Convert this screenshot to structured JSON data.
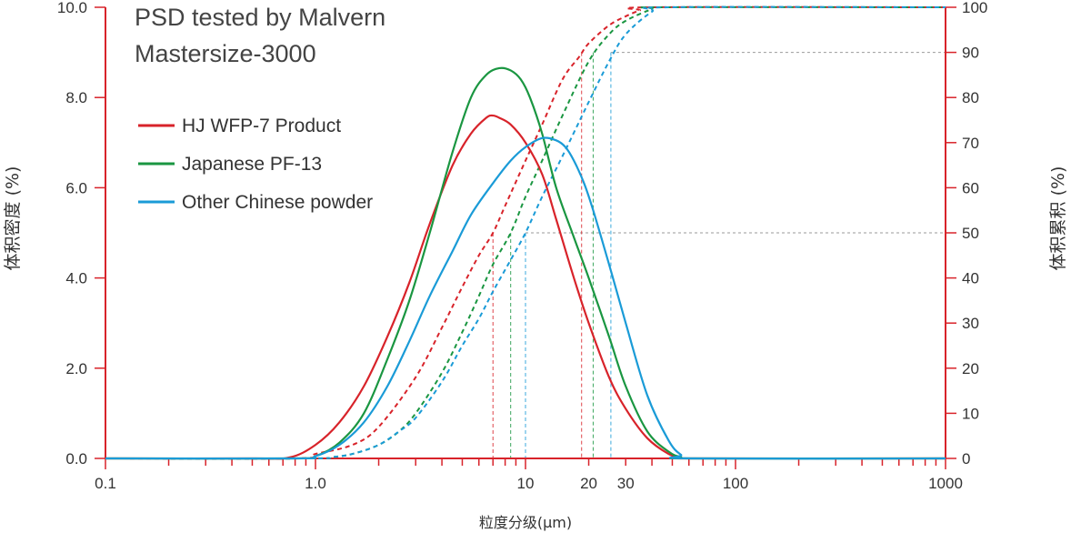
{
  "chart_data": {
    "type": "line",
    "title": [
      "PSD tested by Malvern",
      "Mastersize-3000"
    ],
    "xlabel": "粒度分级(μm)",
    "ylabel_left": "体积密度 (%)",
    "ylabel_right": "体积累积 (%)",
    "x_scale": "log",
    "xlim": [
      0.1,
      1000
    ],
    "ylim_left": [
      0,
      10
    ],
    "ylim_right": [
      0,
      100
    ],
    "x_tick_labels": [
      "0.1",
      "1.0",
      "10",
      "20",
      "30",
      "100",
      "1000"
    ],
    "x_tick_values": [
      0.1,
      1,
      10,
      20,
      30,
      100,
      1000
    ],
    "y_left_tick_labels": [
      "0.0",
      "2.0",
      "4.0",
      "6.0",
      "8.0",
      "10.0"
    ],
    "y_left_tick_values": [
      0,
      2,
      4,
      6,
      8,
      10
    ],
    "y_right_tick_labels": [
      "0",
      "10",
      "20",
      "30",
      "40",
      "50",
      "60",
      "70",
      "80",
      "90",
      "100"
    ],
    "y_right_tick_values": [
      0,
      10,
      20,
      30,
      40,
      50,
      60,
      70,
      80,
      90,
      100
    ],
    "axis_color": "#d8232a",
    "reference_color": "#999999",
    "legend_position": "top-left",
    "reference_levels": [
      50,
      90
    ],
    "series": [
      {
        "name": "HJ WFP-7 Product",
        "color": "#d8232a",
        "density": {
          "x": [
            0.1,
            0.5,
            0.75,
            1.0,
            1.3,
            1.7,
            2.2,
            2.8,
            3.5,
            4.5,
            5.5,
            6.5,
            7.0,
            7.5,
            8.5,
            10,
            12,
            14,
            17,
            20,
            25,
            30,
            38,
            48,
            55,
            62,
            1000
          ],
          "y": [
            0,
            0,
            0.02,
            0.3,
            0.8,
            1.6,
            2.7,
            3.9,
            5.2,
            6.5,
            7.2,
            7.55,
            7.6,
            7.55,
            7.4,
            7.0,
            6.3,
            5.3,
            4.0,
            3.0,
            1.8,
            1.1,
            0.45,
            0.1,
            0.02,
            0,
            0
          ]
        },
        "cumulative": {
          "x": [
            0.1,
            0.8,
            1.0,
            1.5,
            2,
            3,
            4,
            5,
            6,
            7,
            8,
            10,
            12,
            15,
            18,
            20,
            25,
            30,
            35,
            40,
            1000
          ],
          "y": [
            0,
            0,
            1,
            3,
            7,
            18,
            29,
            38,
            45,
            50,
            56,
            66,
            74,
            84,
            89,
            92,
            96,
            98,
            99.3,
            100,
            100
          ]
        },
        "d50": 7.0,
        "d90": 18.5
      },
      {
        "name": "Japanese PF-13",
        "color": "#1a9641",
        "density": {
          "x": [
            0.1,
            0.8,
            1.0,
            1.3,
            1.7,
            2.2,
            2.8,
            3.5,
            4.5,
            5.5,
            6.5,
            7.5,
            8.5,
            9.5,
            10.5,
            12,
            14,
            17,
            20,
            25,
            30,
            38,
            48,
            55,
            62,
            1000
          ],
          "y": [
            0,
            0,
            0.05,
            0.35,
            1.0,
            2.2,
            3.5,
            5.0,
            6.8,
            8.0,
            8.5,
            8.65,
            8.6,
            8.4,
            8.0,
            7.2,
            6.0,
            4.9,
            4.0,
            2.7,
            1.6,
            0.6,
            0.15,
            0.03,
            0,
            0
          ]
        },
        "cumulative": {
          "x": [
            0.1,
            0.9,
            1.2,
            1.5,
            2,
            2.5,
            3,
            4,
            5,
            6,
            7,
            8.5,
            10,
            12,
            15,
            20,
            25,
            30,
            40,
            45,
            1000
          ],
          "y": [
            0,
            0,
            0.3,
            1,
            3,
            6,
            10,
            19,
            28,
            36,
            43,
            50,
            58,
            66,
            76,
            88,
            94,
            97,
            99.6,
            100,
            100
          ]
        },
        "d50": 8.5,
        "d90": 21
      },
      {
        "name": "Other Chinese powder",
        "color": "#1a9bd7",
        "density": {
          "x": [
            0.1,
            0.8,
            1.0,
            1.3,
            1.7,
            2.2,
            2.8,
            3.5,
            4.5,
            5.5,
            7,
            8.5,
            10,
            12,
            14,
            15.5,
            17,
            19,
            21,
            25,
            30,
            38,
            48,
            55,
            62,
            1000
          ],
          "y": [
            0,
            0,
            0.05,
            0.3,
            0.8,
            1.6,
            2.6,
            3.6,
            4.6,
            5.4,
            6.1,
            6.6,
            6.9,
            7.1,
            7.05,
            6.9,
            6.6,
            6.1,
            5.5,
            4.3,
            3.0,
            1.4,
            0.4,
            0.08,
            0,
            0
          ]
        },
        "cumulative": {
          "x": [
            0.1,
            0.9,
            1.2,
            1.5,
            2,
            2.5,
            3,
            4,
            5,
            6,
            7,
            8.5,
            10,
            12,
            15,
            20,
            25,
            30,
            40,
            48,
            1000
          ],
          "y": [
            0,
            0,
            0.3,
            1,
            3,
            6,
            9,
            17,
            25,
            31,
            37,
            44,
            50,
            58,
            67,
            79,
            88,
            94,
            99,
            100,
            100
          ]
        },
        "d50": 10,
        "d90": 25.5
      }
    ]
  }
}
